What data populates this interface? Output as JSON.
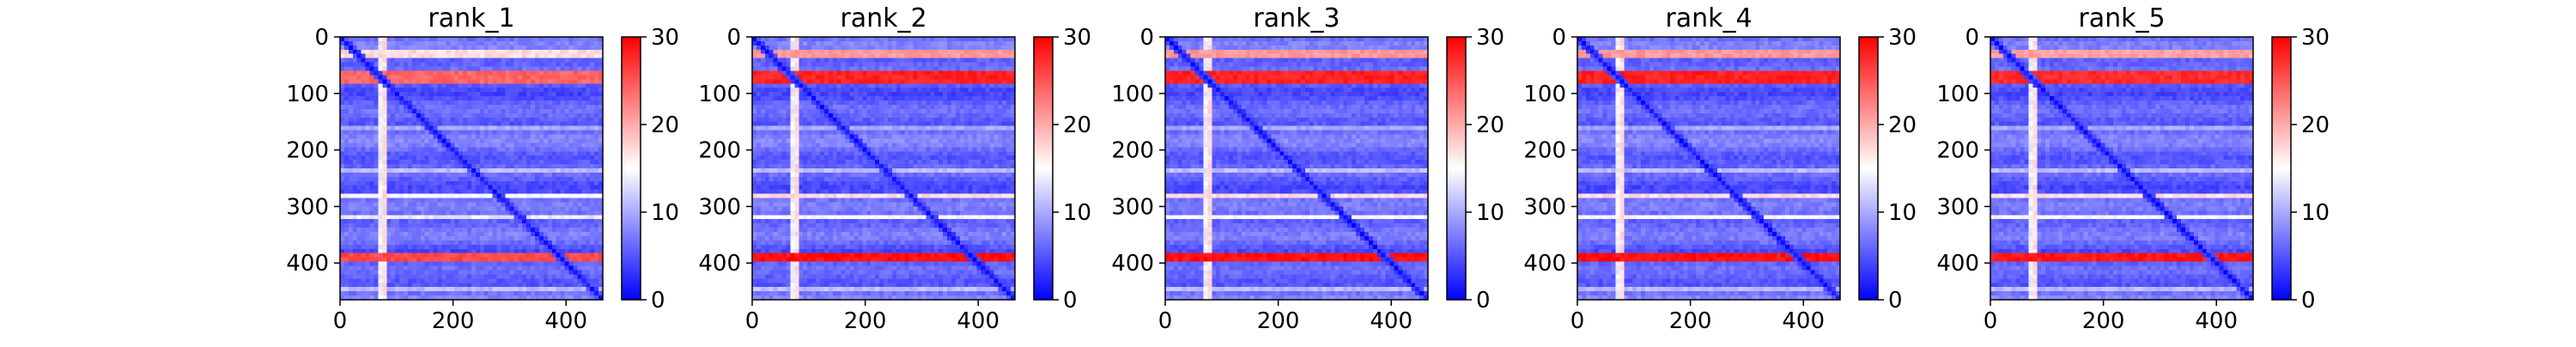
{
  "figure": {
    "type": "heatmap-grid",
    "colormap": "bwr",
    "colors": {
      "low": "#0000ff",
      "mid": "#ffffff",
      "high": "#ff0000"
    }
  },
  "chart_data": [
    {
      "type": "heatmap",
      "title": "rank_1",
      "xlabel": "",
      "ylabel": "",
      "xlim": [
        0,
        465
      ],
      "ylim": [
        465,
        0
      ],
      "x_ticks": [
        0,
        200,
        400
      ],
      "y_ticks": [
        0,
        100,
        200,
        300,
        400
      ],
      "colorbar": {
        "min": 0,
        "max": 30,
        "ticks": [
          0,
          10,
          20,
          30
        ]
      },
      "variant": 0.35
    },
    {
      "type": "heatmap",
      "title": "rank_2",
      "xlabel": "",
      "ylabel": "",
      "xlim": [
        0,
        465
      ],
      "ylim": [
        465,
        0
      ],
      "x_ticks": [
        0,
        200,
        400
      ],
      "y_ticks": [
        0,
        100,
        200,
        300,
        400
      ],
      "colorbar": {
        "min": 0,
        "max": 30,
        "ticks": [
          0,
          10,
          20,
          30
        ]
      },
      "variant": 1.0
    },
    {
      "type": "heatmap",
      "title": "rank_3",
      "xlabel": "",
      "ylabel": "",
      "xlim": [
        0,
        465
      ],
      "ylim": [
        465,
        0
      ],
      "x_ticks": [
        0,
        200,
        400
      ],
      "y_ticks": [
        0,
        100,
        200,
        300,
        400
      ],
      "colorbar": {
        "min": 0,
        "max": 30,
        "ticks": [
          0,
          10,
          20,
          30
        ]
      },
      "variant": 1.0
    },
    {
      "type": "heatmap",
      "title": "rank_4",
      "xlabel": "",
      "ylabel": "",
      "xlim": [
        0,
        465
      ],
      "ylim": [
        465,
        0
      ],
      "x_ticks": [
        0,
        200,
        400
      ],
      "y_ticks": [
        0,
        100,
        200,
        300,
        400
      ],
      "colorbar": {
        "min": 0,
        "max": 30,
        "ticks": [
          0,
          10,
          20,
          30
        ]
      },
      "variant": 1.0
    },
    {
      "type": "heatmap",
      "title": "rank_5",
      "xlabel": "",
      "ylabel": "",
      "xlim": [
        0,
        465
      ],
      "ylim": [
        465,
        0
      ],
      "x_ticks": [
        0,
        200,
        400
      ],
      "y_ticks": [
        0,
        100,
        200,
        300,
        400
      ],
      "colorbar": {
        "min": 0,
        "max": 30,
        "ticks": [
          0,
          10,
          20,
          30
        ]
      },
      "variant": 0.9
    }
  ]
}
